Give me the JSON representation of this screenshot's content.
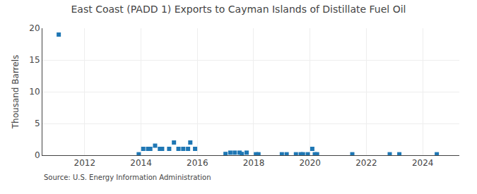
{
  "chart_data": {
    "type": "scatter",
    "title": "East Coast (PADD 1) Exports to Cayman Islands of Distillate Fuel Oil",
    "ylabel": "Thousand Barrels",
    "annotations": [
      "Source: U.S. Energy Information Administration"
    ],
    "marker": "square",
    "grid": true,
    "xlim": [
      2010.5,
      2025.3
    ],
    "xticks": [
      2012,
      2014,
      2016,
      2018,
      2020,
      2022,
      2024
    ],
    "ylim": [
      0,
      20
    ],
    "yticks": [
      0,
      5,
      10,
      15,
      20
    ],
    "x": [
      2011.08,
      2013.92,
      2014.08,
      2014.25,
      2014.33,
      2014.5,
      2014.67,
      2014.75,
      2015.0,
      2015.17,
      2015.33,
      2015.5,
      2015.67,
      2015.75,
      2015.92,
      2017.0,
      2017.17,
      2017.33,
      2017.5,
      2017.58,
      2017.75,
      2018.08,
      2018.17,
      2019.0,
      2019.17,
      2019.5,
      2019.67,
      2019.75,
      2019.92,
      2020.08,
      2020.17,
      2020.25,
      2021.5,
      2022.83,
      2023.17,
      2024.5
    ],
    "values": [
      19.0,
      0.15,
      1.0,
      1.0,
      1.0,
      1.5,
      1.0,
      1.0,
      1.0,
      2.0,
      1.0,
      1.0,
      1.0,
      2.0,
      1.0,
      0.2,
      0.4,
      0.4,
      0.4,
      0.2,
      0.4,
      0.15,
      0.15,
      0.15,
      0.15,
      0.15,
      0.15,
      0.15,
      0.15,
      1.0,
      0.15,
      0.15,
      0.15,
      0.15,
      0.15,
      0.15
    ]
  }
}
